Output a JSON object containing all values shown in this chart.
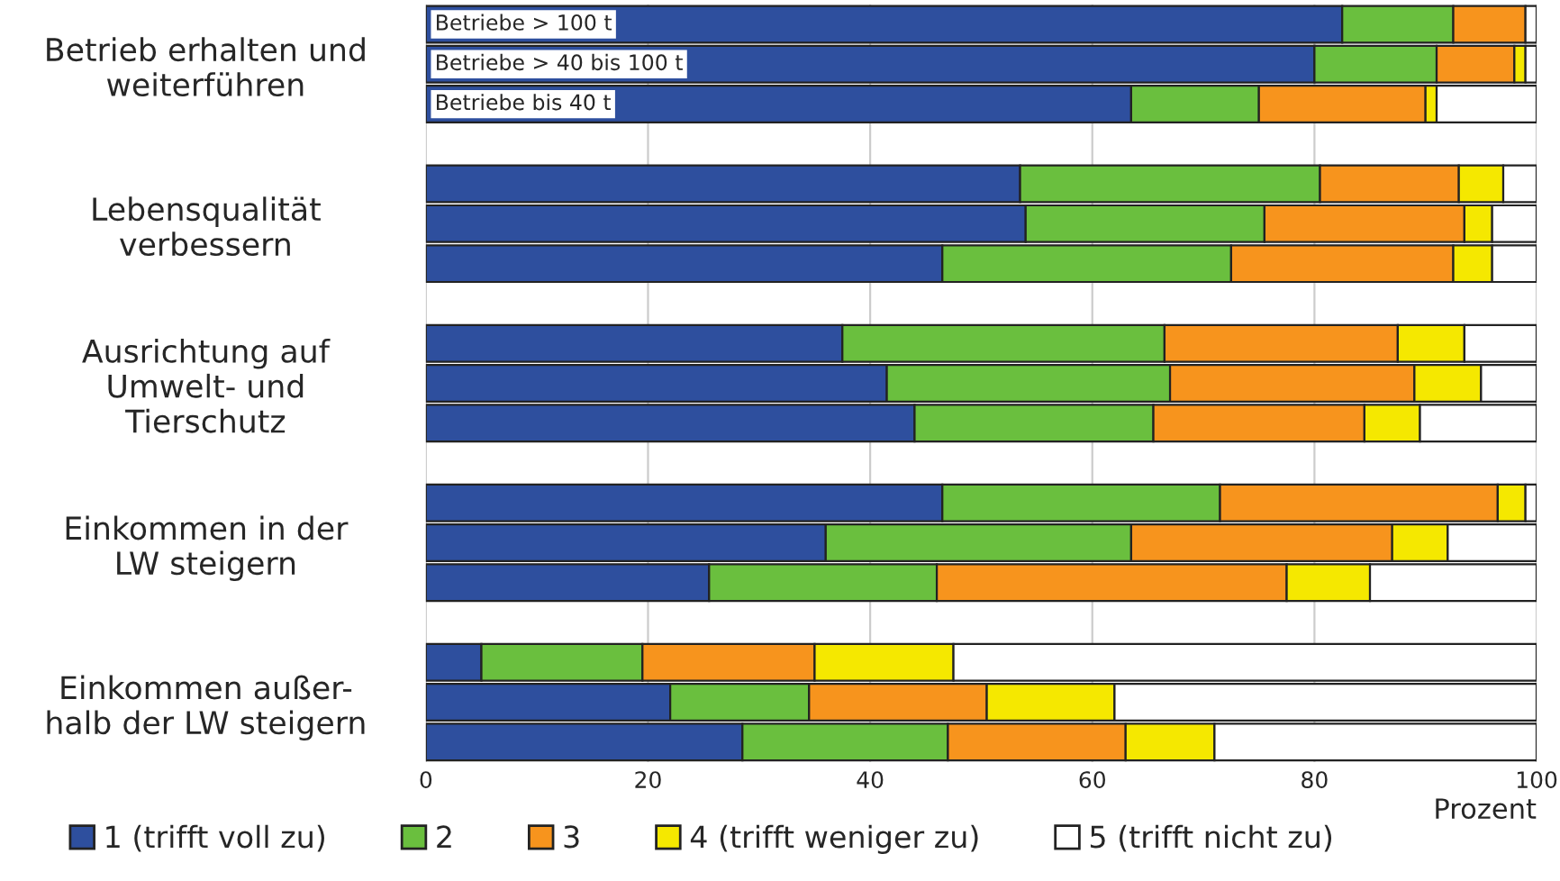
{
  "chart_data": {
    "type": "bar",
    "orientation": "horizontal",
    "stacked": true,
    "categories": [
      null,
      "Betrieb erhalten und\nweiterführen",
      null,
      null,
      null,
      "Lebensqualität\nverbessern",
      null,
      null,
      null,
      "Ausrichtung auf\nUmwelt- und\nTierschutz",
      null,
      null,
      null,
      "Einkommen in der\nLW steigern",
      null,
      null,
      null,
      "Einkommen außer-\nhalb der LW steigern",
      null
    ],
    "series": [
      {
        "name": "1 (trifft voll zu)",
        "color": "#2e4f9e",
        "values": [
          82.5,
          80,
          63.5,
          null,
          53.5,
          54,
          46.5,
          null,
          37.5,
          41.5,
          44,
          null,
          46.5,
          36,
          25.5,
          null,
          5,
          22,
          28.5
        ]
      },
      {
        "name": "2",
        "color": "#6abf3e",
        "values": [
          10,
          11,
          11.5,
          null,
          27,
          21.5,
          26,
          null,
          29,
          25.5,
          21.5,
          null,
          25,
          27.5,
          20.5,
          null,
          14.5,
          12.5,
          18.5
        ]
      },
      {
        "name": "3",
        "color": "#f7941d",
        "values": [
          6.5,
          7,
          15,
          null,
          12.5,
          18,
          20,
          null,
          21,
          22,
          19,
          null,
          25,
          23.5,
          31.5,
          null,
          15.5,
          16,
          16
        ]
      },
      {
        "name": "4 (trifft weniger zu)",
        "color": "#f5e800",
        "values": [
          null,
          1,
          1,
          null,
          4,
          2.5,
          3.5,
          null,
          6,
          6,
          5,
          null,
          2.5,
          5,
          7.5,
          null,
          12.5,
          11.5,
          8
        ]
      },
      {
        "name": "5 (trifft nicht zu)",
        "color": "#ffffff",
        "values": [
          1,
          1,
          9,
          null,
          3,
          4,
          4,
          null,
          6.5,
          5,
          10.5,
          null,
          1,
          8,
          15,
          null,
          52.5,
          38,
          29
        ]
      }
    ],
    "xlim": [
      0,
      100
    ],
    "xticks": [
      0,
      20,
      40,
      60,
      80,
      100
    ],
    "xlabel": "Prozent",
    "annotations": [
      "Betriebe > 100 t",
      "Betriebe > 40 bis 100 t",
      "Betriebe bis 40 t"
    ],
    "grid": "x",
    "legend": "bottom"
  }
}
